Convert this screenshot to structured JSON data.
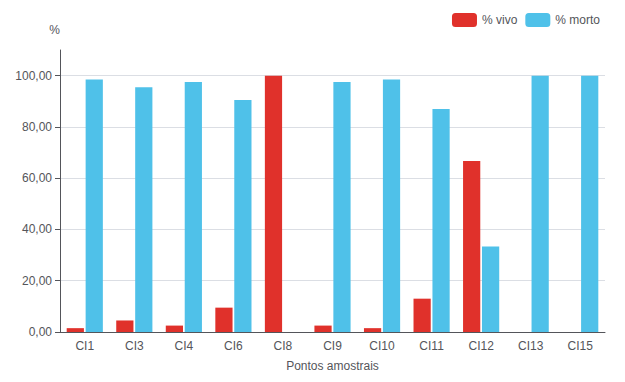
{
  "chart_data": {
    "type": "bar",
    "categories": [
      "CI1",
      "CI3",
      "CI4",
      "CI6",
      "CI8",
      "CI9",
      "CI10",
      "CI11",
      "CI12",
      "CI13",
      "CI15"
    ],
    "series": [
      {
        "name": "% vivo",
        "color": "#E0312B",
        "values": [
          1.5,
          4.5,
          2.5,
          9.5,
          100.0,
          2.5,
          1.5,
          13.0,
          66.67,
          0.0,
          0.0
        ]
      },
      {
        "name": "% morto",
        "color": "#4FC1E9",
        "values": [
          98.5,
          95.5,
          97.5,
          90.5,
          0.0,
          97.5,
          98.5,
          87.0,
          33.33,
          100.0,
          100.0
        ]
      }
    ],
    "xlabel": "Pontos amostrais",
    "ylabel": "%",
    "ylim": [
      0,
      110
    ],
    "yticks": [
      {
        "value": 0,
        "label": "0,00"
      },
      {
        "value": 20,
        "label": "20,00"
      },
      {
        "value": 40,
        "label": "40,00"
      },
      {
        "value": 60,
        "label": "60,00"
      },
      {
        "value": 80,
        "label": "80,00"
      },
      {
        "value": 100,
        "label": "100,00"
      }
    ],
    "grid": true,
    "legend": "upper right"
  }
}
